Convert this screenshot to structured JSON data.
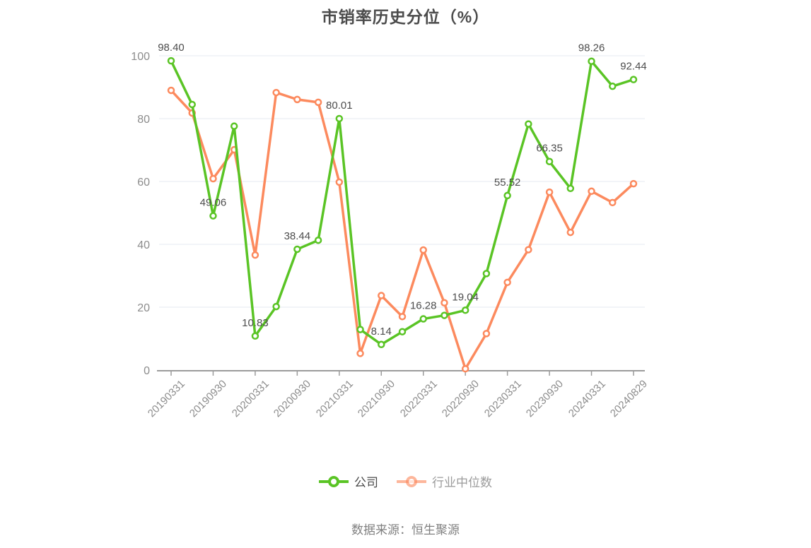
{
  "title": "市销率历史分位（%）",
  "source_note": "数据来源：恒生聚源",
  "legend": [
    {
      "label": "公司",
      "color": "#5ac425",
      "icon_opacity": 1,
      "text_color": "#4a4a4a"
    },
    {
      "label": "行业中位数",
      "color": "#fc8a5e",
      "icon_opacity": 0.62,
      "text_color": "#9b9b9b"
    }
  ],
  "chart_data": {
    "type": "line",
    "title": "市销率历史分位（%）",
    "ylim": [
      0,
      100
    ],
    "yticks": [
      0,
      20,
      40,
      60,
      80,
      100
    ],
    "grid": true,
    "legend_position": "bottom",
    "x_tick_labels": [
      "20190331",
      "20190930",
      "20200331",
      "20200930",
      "20210331",
      "20210930",
      "20220331",
      "20220930",
      "20230331",
      "20230930",
      "20240331",
      "20240829"
    ],
    "x_tick_point_indices": [
      0,
      2,
      4,
      6,
      8,
      10,
      12,
      14,
      16,
      18,
      20,
      22
    ],
    "n_points": 23,
    "series": [
      {
        "name": "公司",
        "color": "#5ac425",
        "values": [
          98.4,
          84.5,
          49.06,
          77.6,
          10.83,
          20.2,
          38.44,
          41.3,
          80.01,
          12.9,
          8.14,
          12.2,
          16.28,
          17.4,
          19.04,
          30.7,
          55.52,
          78.3,
          66.35,
          57.8,
          98.26,
          90.3,
          92.44
        ],
        "labeled_indices": [
          0,
          2,
          4,
          6,
          8,
          10,
          12,
          14,
          16,
          18,
          20,
          22
        ],
        "point_labels": [
          "98.40",
          "49.06",
          "10.83",
          "38.44",
          "80.01",
          "8.14",
          "16.28",
          "19.04",
          "55.52",
          "66.35",
          "98.26",
          "92.44"
        ]
      },
      {
        "name": "行业中位数",
        "color": "#fc8a5e",
        "values": [
          89.0,
          81.8,
          60.9,
          70.1,
          36.6,
          88.3,
          86.1,
          85.2,
          59.8,
          5.3,
          23.7,
          17.0,
          38.2,
          21.4,
          0.4,
          11.6,
          27.9,
          38.3,
          56.6,
          43.8,
          56.9,
          53.3,
          59.3
        ],
        "labeled_indices": [],
        "point_labels": []
      }
    ],
    "axis_colors": {
      "grid": "#e4eaf2",
      "axis_line": "#9b9b9b",
      "tick_label": "#8c8c8c",
      "data_label": "#4d4d4d"
    }
  }
}
